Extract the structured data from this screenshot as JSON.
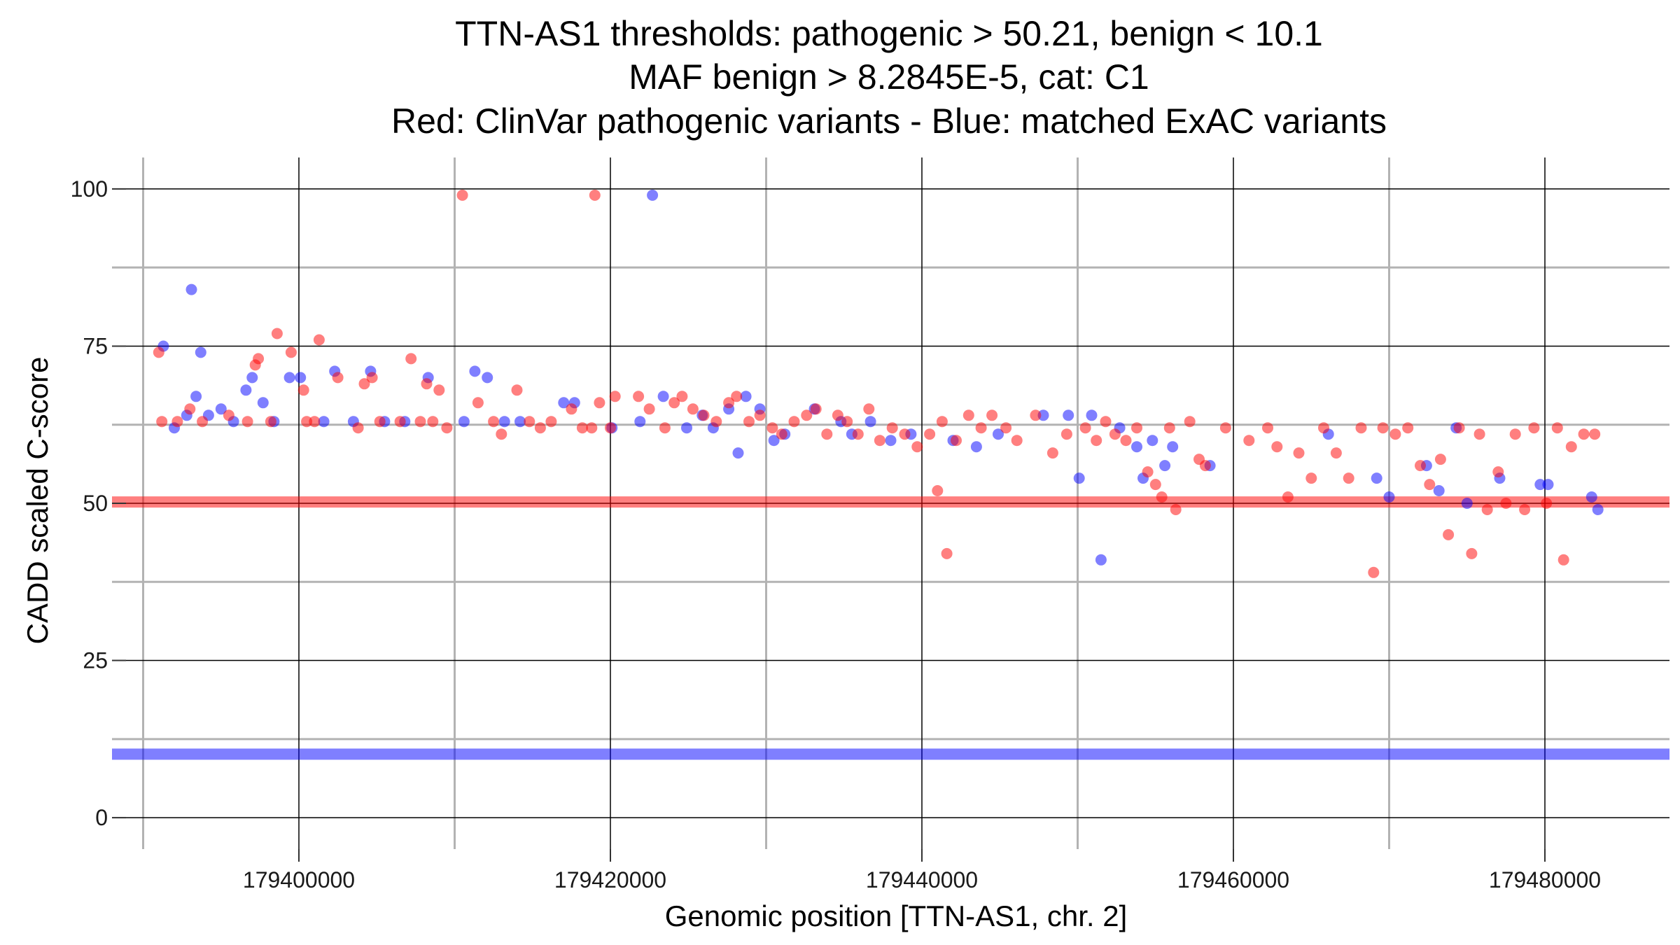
{
  "chart_data": {
    "type": "scatter",
    "title_lines": [
      "TTN-AS1 thresholds: pathogenic > 50.21, benign < 10.1",
      "MAF benign > 8.2845E-5, cat: C1",
      "Red: ClinVar pathogenic variants - Blue: matched ExAC variants"
    ],
    "xlabel": "Genomic position [TTN-AS1, chr. 2]",
    "ylabel": "CADD scaled C-score",
    "xlim": [
      179388000,
      179488000
    ],
    "ylim": [
      -5,
      105
    ],
    "x_ticks": [
      179400000,
      179420000,
      179440000,
      179460000,
      179480000
    ],
    "x_minor_ticks": [
      179390000,
      179410000,
      179430000,
      179450000,
      179470000
    ],
    "y_ticks": [
      0,
      25,
      50,
      75,
      100
    ],
    "y_minor_ticks": [
      12.5,
      37.5,
      62.5,
      87.5
    ],
    "x_tick_labels": [
      "179400000",
      "179420000",
      "179440000",
      "179460000",
      "179480000"
    ],
    "y_tick_labels": [
      "0",
      "25",
      "50",
      "75",
      "100"
    ],
    "grid": true,
    "thresholds": {
      "pathogenic": 50.21,
      "benign": 10.1,
      "pathogenic_color": "#ff0000",
      "benign_color": "#0000ff"
    },
    "series": [
      {
        "color": "#ff0000",
        "points": [
          [
            179391000,
            74
          ],
          [
            179391200,
            63
          ],
          [
            179392200,
            63
          ],
          [
            179393000,
            65
          ],
          [
            179393800,
            63
          ],
          [
            179395500,
            64
          ],
          [
            179396700,
            63
          ],
          [
            179397200,
            72
          ],
          [
            179397400,
            73
          ],
          [
            179398200,
            63
          ],
          [
            179398600,
            77
          ],
          [
            179399500,
            74
          ],
          [
            179400300,
            68
          ],
          [
            179400500,
            63
          ],
          [
            179401000,
            63
          ],
          [
            179401300,
            76
          ],
          [
            179402500,
            70
          ],
          [
            179403800,
            62
          ],
          [
            179404200,
            69
          ],
          [
            179404700,
            70
          ],
          [
            179405200,
            63
          ],
          [
            179406500,
            63
          ],
          [
            179407200,
            73
          ],
          [
            179407800,
            63
          ],
          [
            179408200,
            69
          ],
          [
            179408600,
            63
          ],
          [
            179409000,
            68
          ],
          [
            179409500,
            62
          ],
          [
            179410500,
            99
          ],
          [
            179411500,
            66
          ],
          [
            179412500,
            63
          ],
          [
            179413000,
            61
          ],
          [
            179414000,
            68
          ],
          [
            179414800,
            63
          ],
          [
            179415500,
            62
          ],
          [
            179416200,
            63
          ],
          [
            179417500,
            65
          ],
          [
            179418200,
            62
          ],
          [
            179418800,
            62
          ],
          [
            179419300,
            66
          ],
          [
            179420000,
            62
          ],
          [
            179420300,
            67
          ],
          [
            179419000,
            99
          ],
          [
            179421800,
            67
          ],
          [
            179422500,
            65
          ],
          [
            179423500,
            62
          ],
          [
            179424100,
            66
          ],
          [
            179424600,
            67
          ],
          [
            179425300,
            65
          ],
          [
            179426000,
            64
          ],
          [
            179426800,
            63
          ],
          [
            179427600,
            66
          ],
          [
            179428100,
            67
          ],
          [
            179428900,
            63
          ],
          [
            179429600,
            64
          ],
          [
            179430400,
            62
          ],
          [
            179431000,
            61
          ],
          [
            179431800,
            63
          ],
          [
            179432600,
            64
          ],
          [
            179433200,
            65
          ],
          [
            179433900,
            61
          ],
          [
            179434600,
            64
          ],
          [
            179435200,
            63
          ],
          [
            179435900,
            61
          ],
          [
            179436600,
            65
          ],
          [
            179437300,
            60
          ],
          [
            179438100,
            62
          ],
          [
            179438900,
            61
          ],
          [
            179439700,
            59
          ],
          [
            179440500,
            61
          ],
          [
            179441000,
            52
          ],
          [
            179441300,
            63
          ],
          [
            179441600,
            42
          ],
          [
            179442200,
            60
          ],
          [
            179443000,
            64
          ],
          [
            179443800,
            62
          ],
          [
            179444500,
            64
          ],
          [
            179445400,
            62
          ],
          [
            179446100,
            60
          ],
          [
            179447300,
            64
          ],
          [
            179448400,
            58
          ],
          [
            179449300,
            61
          ],
          [
            179450500,
            62
          ],
          [
            179451200,
            60
          ],
          [
            179451800,
            63
          ],
          [
            179452400,
            61
          ],
          [
            179453100,
            60
          ],
          [
            179453800,
            62
          ],
          [
            179454500,
            55
          ],
          [
            179455000,
            53
          ],
          [
            179455400,
            51
          ],
          [
            179455900,
            62
          ],
          [
            179456300,
            49
          ],
          [
            179457200,
            63
          ],
          [
            179457800,
            57
          ],
          [
            179458200,
            56
          ],
          [
            179459500,
            62
          ],
          [
            179461000,
            60
          ],
          [
            179462200,
            62
          ],
          [
            179462800,
            59
          ],
          [
            179463500,
            51
          ],
          [
            179464200,
            58
          ],
          [
            179465000,
            54
          ],
          [
            179465800,
            62
          ],
          [
            179466600,
            58
          ],
          [
            179467400,
            54
          ],
          [
            179468200,
            62
          ],
          [
            179469000,
            39
          ],
          [
            179469600,
            62
          ],
          [
            179470400,
            61
          ],
          [
            179471200,
            62
          ],
          [
            179472000,
            56
          ],
          [
            179472600,
            53
          ],
          [
            179473300,
            57
          ],
          [
            179473800,
            45
          ],
          [
            179474500,
            62
          ],
          [
            179475300,
            42
          ],
          [
            179475800,
            61
          ],
          [
            179476300,
            49
          ],
          [
            179477000,
            55
          ],
          [
            179477500,
            50
          ],
          [
            179478100,
            61
          ],
          [
            179478700,
            49
          ],
          [
            179479300,
            62
          ],
          [
            179480100,
            50
          ],
          [
            179480800,
            62
          ],
          [
            179481200,
            41
          ],
          [
            179481700,
            59
          ],
          [
            179482500,
            61
          ],
          [
            179483200,
            61
          ]
        ]
      },
      {
        "color": "#0000ff",
        "points": [
          [
            179391300,
            75
          ],
          [
            179392000,
            62
          ],
          [
            179392800,
            64
          ],
          [
            179393100,
            84
          ],
          [
            179393400,
            67
          ],
          [
            179393700,
            74
          ],
          [
            179394200,
            64
          ],
          [
            179395000,
            65
          ],
          [
            179395800,
            63
          ],
          [
            179396600,
            68
          ],
          [
            179397000,
            70
          ],
          [
            179397700,
            66
          ],
          [
            179398400,
            63
          ],
          [
            179399400,
            70
          ],
          [
            179400100,
            70
          ],
          [
            179401600,
            63
          ],
          [
            179402300,
            71
          ],
          [
            179403500,
            63
          ],
          [
            179404600,
            71
          ],
          [
            179405500,
            63
          ],
          [
            179406800,
            63
          ],
          [
            179408300,
            70
          ],
          [
            179410600,
            63
          ],
          [
            179411300,
            71
          ],
          [
            179412100,
            70
          ],
          [
            179413200,
            63
          ],
          [
            179414200,
            63
          ],
          [
            179417700,
            66
          ],
          [
            179421900,
            63
          ],
          [
            179423400,
            67
          ],
          [
            179424900,
            62
          ],
          [
            179425900,
            64
          ],
          [
            179426600,
            62
          ],
          [
            179427600,
            65
          ],
          [
            179428200,
            58
          ],
          [
            179428700,
            67
          ],
          [
            179429600,
            65
          ],
          [
            179430500,
            60
          ],
          [
            179431200,
            61
          ],
          [
            179433100,
            65
          ],
          [
            179434800,
            63
          ],
          [
            179435500,
            61
          ],
          [
            179436700,
            63
          ],
          [
            179438000,
            60
          ],
          [
            179439300,
            61
          ],
          [
            179442000,
            60
          ],
          [
            179443500,
            59
          ],
          [
            179444900,
            61
          ],
          [
            179447800,
            64
          ],
          [
            179449400,
            64
          ],
          [
            179450100,
            54
          ],
          [
            179450900,
            64
          ],
          [
            179451500,
            41
          ],
          [
            179452700,
            62
          ],
          [
            179453800,
            59
          ],
          [
            179454200,
            54
          ],
          [
            179454800,
            60
          ],
          [
            179455600,
            56
          ],
          [
            179456100,
            59
          ],
          [
            179458500,
            56
          ],
          [
            179466100,
            61
          ],
          [
            179469200,
            54
          ],
          [
            179470000,
            51
          ],
          [
            179472400,
            56
          ],
          [
            179473200,
            52
          ],
          [
            179474300,
            62
          ],
          [
            179475000,
            50
          ],
          [
            179477100,
            54
          ],
          [
            179479700,
            53
          ],
          [
            179480200,
            53
          ],
          [
            179483000,
            51
          ],
          [
            179483400,
            49
          ],
          [
            179417000,
            66
          ],
          [
            179420100,
            62
          ],
          [
            179422700,
            99
          ]
        ]
      }
    ]
  }
}
